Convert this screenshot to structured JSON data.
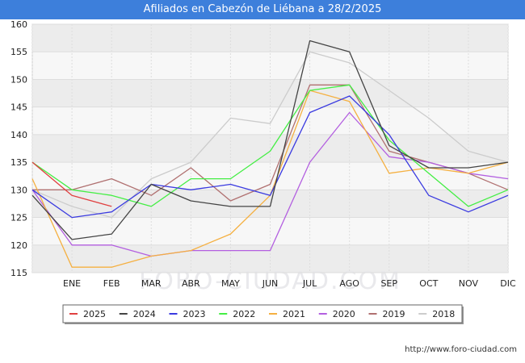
{
  "title": "Afiliados en Cabezón de Liébana a 28/2/2025",
  "watermark": "FORO-CIUDAD.COM",
  "footer_url": "http://www.foro-ciudad.com",
  "chart_data": {
    "type": "line",
    "categories": [
      "",
      "ENE",
      "FEB",
      "MAR",
      "ABR",
      "MAY",
      "JUN",
      "JUL",
      "AGO",
      "SEP",
      "OCT",
      "NOV",
      "DIC"
    ],
    "ylim": [
      115,
      160
    ],
    "yticks": [
      115,
      120,
      125,
      130,
      135,
      140,
      145,
      150,
      155,
      160
    ],
    "grid": true,
    "legend_position": "bottom",
    "series": [
      {
        "name": "2018",
        "color": "#cccccc",
        "values": [
          130,
          127,
          125,
          132,
          135,
          143,
          142,
          155,
          153,
          148,
          143,
          137,
          135
        ]
      },
      {
        "name": "2019",
        "color": "#b07070",
        "values": [
          130,
          130,
          132,
          129,
          134,
          128,
          131,
          149,
          149,
          137,
          135,
          133,
          130
        ]
      },
      {
        "name": "2020",
        "color": "#b35fe0",
        "values": [
          130,
          120,
          120,
          118,
          119,
          119,
          119,
          135,
          144,
          136,
          135,
          133,
          132
        ]
      },
      {
        "name": "2021",
        "color": "#f5b041",
        "values": [
          132,
          116,
          116,
          118,
          119,
          122,
          129,
          148,
          146,
          133,
          134,
          133,
          135
        ]
      },
      {
        "name": "2022",
        "color": "#44ee44",
        "values": [
          135,
          130,
          129,
          127,
          132,
          132,
          137,
          148,
          149,
          139,
          133,
          127,
          130
        ]
      },
      {
        "name": "2023",
        "color": "#3a3ae0",
        "values": [
          130,
          125,
          126,
          131,
          130,
          131,
          129,
          144,
          147,
          140,
          129,
          126,
          129
        ]
      },
      {
        "name": "2024",
        "color": "#444444",
        "values": [
          129,
          121,
          122,
          131,
          128,
          127,
          127,
          157,
          155,
          138,
          134,
          134,
          135
        ]
      },
      {
        "name": "2025",
        "color": "#e04040",
        "values": [
          135,
          129,
          127,
          null,
          null,
          null,
          null,
          null,
          null,
          null,
          null,
          null,
          null
        ]
      }
    ],
    "legend_order": [
      "2025",
      "2024",
      "2023",
      "2022",
      "2021",
      "2020",
      "2019",
      "2018"
    ]
  }
}
